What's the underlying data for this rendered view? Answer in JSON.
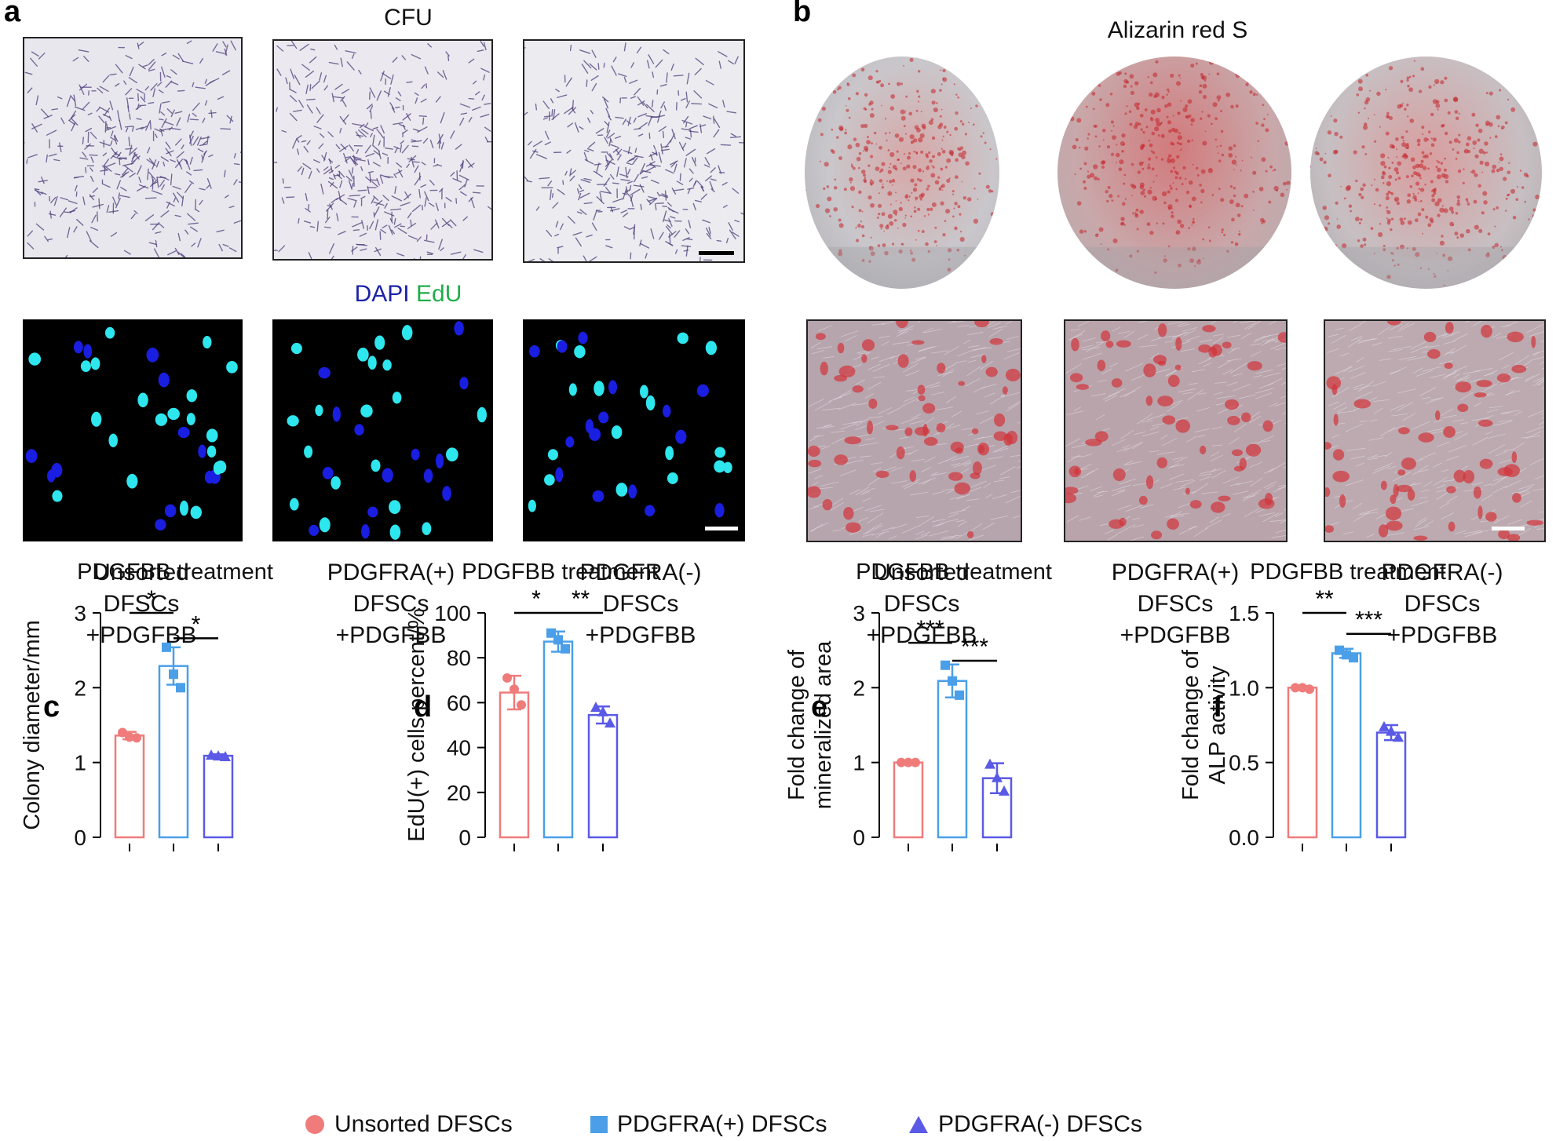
{
  "panels": {
    "a": "a",
    "b": "b",
    "c": "c",
    "d": "d",
    "e": "e",
    "f": "f"
  },
  "a_titles": {
    "cfu": "CFU",
    "dapi": "DAPI",
    "edu": "EdU"
  },
  "b_title": "Alizarin red S",
  "conditions": [
    [
      "Unsorted",
      "DFSCs",
      "+PDGFBB"
    ],
    [
      "PDGFRA(+)",
      "DFSCs",
      "+PDGFBB"
    ],
    [
      "PDGFRA(-)",
      "DFSCs",
      "+PDGFBB"
    ]
  ],
  "colors": {
    "unsorted": "#f07b7b",
    "pos": "#4a9fe8",
    "neg": "#5a5ae6",
    "dapi": "#1c24a8",
    "edu": "#1fae4a",
    "alizarin": "#c4242a",
    "cfu": "#4e3f7a"
  },
  "legend": {
    "unsorted": "Unsorted DFSCs",
    "pos": "PDGFRA(+) DFSCs",
    "neg": "PDGFRA(-) DFSCs"
  },
  "chart_data": [
    {
      "panel": "c",
      "type": "bar",
      "title": "PDGFBB treatment",
      "ylabel": [
        "Colony diameter/mm"
      ],
      "ylim": [
        0,
        3
      ],
      "yticks": [
        0,
        1,
        2,
        3
      ],
      "tick_labels": [
        "0",
        "1",
        "2",
        "3"
      ],
      "categories": [
        "Unsorted DFSCs",
        "PDGFRA(+) DFSCs",
        "PDGFRA(-) DFSCs"
      ],
      "values": [
        1.36,
        2.29,
        1.09
      ],
      "errors": [
        0.05,
        0.25,
        0.02
      ],
      "points": [
        [
          1.4,
          1.34,
          1.33
        ],
        [
          2.54,
          2.18,
          2.0
        ],
        [
          1.1,
          1.09,
          1.08
        ]
      ],
      "significance": [
        {
          "from": 0,
          "to": 1,
          "label": "*",
          "y": 3.0
        },
        {
          "from": 1,
          "to": 2,
          "label": "*",
          "y": 2.66
        }
      ]
    },
    {
      "panel": "d",
      "type": "bar",
      "title": "PDGFBB treatment",
      "ylabel": [
        "EdU(+) cells percent/%"
      ],
      "ylim": [
        0,
        100
      ],
      "yticks": [
        0,
        20,
        40,
        60,
        80,
        100
      ],
      "tick_labels": [
        "0",
        "20",
        "40",
        "60",
        "80",
        "100"
      ],
      "categories": [
        "Unsorted DFSCs",
        "PDGFRA(+) DFSCs",
        "PDGFRA(-) DFSCs"
      ],
      "values": [
        64.5,
        87.2,
        54.5
      ],
      "errors": [
        7.5,
        4.5,
        3.8
      ],
      "points": [
        [
          71,
          66,
          59
        ],
        [
          91,
          88,
          84
        ],
        [
          58,
          56,
          51
        ]
      ],
      "significance": [
        {
          "from": 0,
          "to": 1,
          "label": "*",
          "y": 100
        },
        {
          "from": 1,
          "to": 2,
          "label": "**",
          "y": 100
        }
      ]
    },
    {
      "panel": "e",
      "type": "bar",
      "title": "PDGFBB treatment",
      "ylabel": [
        "Fold change of",
        "mineralized area"
      ],
      "ylim": [
        0,
        3
      ],
      "yticks": [
        0,
        1,
        2,
        3
      ],
      "tick_labels": [
        "0",
        "1",
        "2",
        "3"
      ],
      "categories": [
        "Unsorted DFSCs",
        "PDGFRA(+) DFSCs",
        "PDGFRA(-) DFSCs"
      ],
      "values": [
        1.0,
        2.09,
        0.79
      ],
      "errors": [
        0.01,
        0.22,
        0.2
      ],
      "points": [
        [
          1.0,
          1.0,
          1.0
        ],
        [
          2.3,
          2.09,
          1.9
        ],
        [
          0.98,
          0.8,
          0.62
        ]
      ],
      "significance": [
        {
          "from": 0,
          "to": 1,
          "label": "***",
          "y": 2.6
        },
        {
          "from": 1,
          "to": 2,
          "label": "***",
          "y": 2.36
        }
      ]
    },
    {
      "panel": "f",
      "type": "bar",
      "title": "PDGFBB treatment",
      "ylabel": [
        "Fold change of",
        "ALP activity"
      ],
      "ylim": [
        0,
        1.5
      ],
      "yticks": [
        0,
        0.5,
        1.0,
        1.5
      ],
      "tick_labels": [
        "0.0",
        "0.5",
        "1.0",
        "1.5"
      ],
      "categories": [
        "Unsorted DFSCs",
        "PDGFRA(+) DFSCs",
        "PDGFRA(-) DFSCs"
      ],
      "values": [
        1.0,
        1.23,
        0.7
      ],
      "errors": [
        0.01,
        0.03,
        0.05
      ],
      "points": [
        [
          1.0,
          1.0,
          0.99
        ],
        [
          1.25,
          1.22,
          1.2
        ],
        [
          0.74,
          0.71,
          0.67
        ]
      ],
      "significance": [
        {
          "from": 0,
          "to": 1,
          "label": "**",
          "y": 1.5
        },
        {
          "from": 1,
          "to": 2,
          "label": "***",
          "y": 1.36
        }
      ]
    }
  ]
}
